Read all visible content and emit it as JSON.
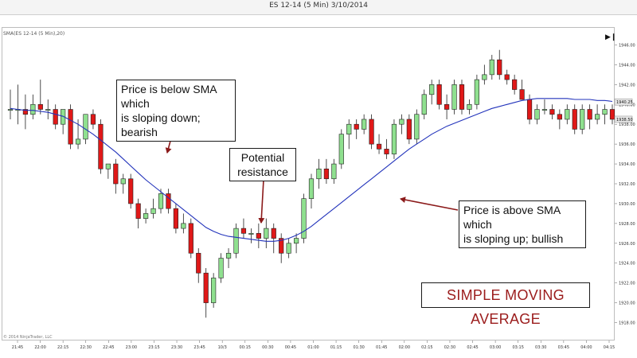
{
  "window_title": "ES 12-14 (5 Min)  3/10/2014",
  "instrument_label": "SMA(ES 12-14 (5 Min),20)",
  "copyright": "© 2014 NinjaTrader, LLC",
  "icons": {
    "play": "play-to-end-icon"
  },
  "colors": {
    "up": "#8fe08f",
    "down": "#e01818",
    "sma": "#2233bb",
    "arrow": "#8b1a1a",
    "title": "#9b1c1c"
  },
  "annotations": {
    "below_sma": "Price is below SMA which\nis sloping down; bearish",
    "resistance": "Potential\nresistance",
    "above_sma": "Price is above SMA which\nis sloping up; bullish",
    "title": "SIMPLE MOVING AVERAGE"
  },
  "chart_data": {
    "type": "candlestick",
    "title": "ES 12-14 (5 Min)  3/10/2014",
    "xlabel": "",
    "ylabel": "",
    "ylim": [
      1917,
      1947
    ],
    "y_ticks": [
      1918,
      1920,
      1922,
      1924,
      1926,
      1928,
      1930,
      1932,
      1934,
      1936,
      1938,
      1940,
      1942,
      1944,
      1946
    ],
    "y_tick_labels": [
      "1918.00",
      "1920.00",
      "1922.00",
      "1924.00",
      "1926.00",
      "1928.00",
      "1930.00",
      "1932.00",
      "1934.00",
      "1936.00",
      "1938.00",
      "1940.00",
      "1942.00",
      "1944.00",
      "1946.00"
    ],
    "x_ticks": [
      "21:45",
      "22:00",
      "22:15",
      "22:30",
      "22:45",
      "23:00",
      "23:15",
      "23:30",
      "23:45",
      "10/3",
      "00:15",
      "00:30",
      "00:45",
      "01:00",
      "01:15",
      "01:30",
      "01:45",
      "02:00",
      "02:15",
      "02:30",
      "02:45",
      "03:00",
      "03:15",
      "03:30",
      "03:45",
      "04:00",
      "04:15"
    ],
    "last_price_labels": [
      {
        "value": 1940.25,
        "label": "1940.25"
      },
      {
        "value": 1938.5,
        "label": "1938.50"
      }
    ],
    "candles": [
      {
        "o": 1939.5,
        "h": 1941.5,
        "l": 1938.5,
        "c": 1939.5
      },
      {
        "o": 1939.5,
        "h": 1942.0,
        "l": 1938.0,
        "c": 1939.5
      },
      {
        "o": 1939.5,
        "h": 1941.0,
        "l": 1937.5,
        "c": 1939.0
      },
      {
        "o": 1939.0,
        "h": 1941.0,
        "l": 1938.5,
        "c": 1940.0
      },
      {
        "o": 1940.0,
        "h": 1942.5,
        "l": 1939.0,
        "c": 1939.5
      },
      {
        "o": 1939.5,
        "h": 1940.5,
        "l": 1938.5,
        "c": 1939.5
      },
      {
        "o": 1939.5,
        "h": 1940.0,
        "l": 1937.5,
        "c": 1938.0
      },
      {
        "o": 1938.0,
        "h": 1939.5,
        "l": 1937.0,
        "c": 1939.5
      },
      {
        "o": 1939.5,
        "h": 1940.0,
        "l": 1935.5,
        "c": 1936.0
      },
      {
        "o": 1936.0,
        "h": 1938.5,
        "l": 1935.5,
        "c": 1936.5
      },
      {
        "o": 1936.5,
        "h": 1939.0,
        "l": 1936.0,
        "c": 1939.0
      },
      {
        "o": 1939.0,
        "h": 1939.5,
        "l": 1937.5,
        "c": 1938.0
      },
      {
        "o": 1938.0,
        "h": 1938.5,
        "l": 1933.0,
        "c": 1933.5
      },
      {
        "o": 1933.5,
        "h": 1934.0,
        "l": 1932.5,
        "c": 1934.0
      },
      {
        "o": 1934.0,
        "h": 1934.5,
        "l": 1931.0,
        "c": 1932.0
      },
      {
        "o": 1932.0,
        "h": 1933.0,
        "l": 1931.0,
        "c": 1932.5
      },
      {
        "o": 1932.5,
        "h": 1933.0,
        "l": 1929.5,
        "c": 1930.0
      },
      {
        "o": 1930.0,
        "h": 1930.5,
        "l": 1927.5,
        "c": 1928.5
      },
      {
        "o": 1928.5,
        "h": 1929.5,
        "l": 1928.0,
        "c": 1929.0
      },
      {
        "o": 1929.0,
        "h": 1930.5,
        "l": 1928.5,
        "c": 1929.5
      },
      {
        "o": 1929.5,
        "h": 1931.5,
        "l": 1929.0,
        "c": 1931.0
      },
      {
        "o": 1931.0,
        "h": 1931.5,
        "l": 1929.0,
        "c": 1929.5
      },
      {
        "o": 1929.5,
        "h": 1930.0,
        "l": 1927.0,
        "c": 1927.5
      },
      {
        "o": 1927.5,
        "h": 1929.0,
        "l": 1927.0,
        "c": 1928.0
      },
      {
        "o": 1928.0,
        "h": 1928.5,
        "l": 1924.5,
        "c": 1925.0
      },
      {
        "o": 1925.0,
        "h": 1925.5,
        "l": 1922.0,
        "c": 1923.0
      },
      {
        "o": 1923.0,
        "h": 1923.5,
        "l": 1918.5,
        "c": 1920.0
      },
      {
        "o": 1920.0,
        "h": 1923.0,
        "l": 1919.5,
        "c": 1922.5
      },
      {
        "o": 1922.5,
        "h": 1925.0,
        "l": 1922.0,
        "c": 1924.5
      },
      {
        "o": 1924.5,
        "h": 1925.5,
        "l": 1923.5,
        "c": 1925.0
      },
      {
        "o": 1925.0,
        "h": 1928.0,
        "l": 1924.5,
        "c": 1927.5
      },
      {
        "o": 1927.5,
        "h": 1928.5,
        "l": 1926.5,
        "c": 1927.0
      },
      {
        "o": 1927.0,
        "h": 1927.5,
        "l": 1926.0,
        "c": 1927.0
      },
      {
        "o": 1927.0,
        "h": 1928.0,
        "l": 1925.5,
        "c": 1926.5
      },
      {
        "o": 1926.5,
        "h": 1928.5,
        "l": 1925.5,
        "c": 1927.5
      },
      {
        "o": 1927.5,
        "h": 1928.0,
        "l": 1925.0,
        "c": 1926.5
      },
      {
        "o": 1926.5,
        "h": 1927.0,
        "l": 1924.0,
        "c": 1925.0
      },
      {
        "o": 1925.0,
        "h": 1926.5,
        "l": 1924.5,
        "c": 1926.0
      },
      {
        "o": 1926.0,
        "h": 1927.0,
        "l": 1925.0,
        "c": 1926.5
      },
      {
        "o": 1926.5,
        "h": 1931.0,
        "l": 1926.0,
        "c": 1930.5
      },
      {
        "o": 1930.5,
        "h": 1933.0,
        "l": 1929.5,
        "c": 1932.5
      },
      {
        "o": 1932.5,
        "h": 1934.5,
        "l": 1931.5,
        "c": 1933.5
      },
      {
        "o": 1933.5,
        "h": 1934.5,
        "l": 1932.0,
        "c": 1932.5
      },
      {
        "o": 1932.5,
        "h": 1934.5,
        "l": 1932.0,
        "c": 1934.0
      },
      {
        "o": 1934.0,
        "h": 1937.5,
        "l": 1933.5,
        "c": 1937.0
      },
      {
        "o": 1937.0,
        "h": 1938.5,
        "l": 1935.5,
        "c": 1938.0
      },
      {
        "o": 1938.0,
        "h": 1938.5,
        "l": 1936.5,
        "c": 1937.5
      },
      {
        "o": 1937.5,
        "h": 1939.0,
        "l": 1937.0,
        "c": 1938.5
      },
      {
        "o": 1938.5,
        "h": 1939.0,
        "l": 1935.5,
        "c": 1936.0
      },
      {
        "o": 1936.0,
        "h": 1937.0,
        "l": 1935.0,
        "c": 1935.5
      },
      {
        "o": 1935.5,
        "h": 1936.5,
        "l": 1934.5,
        "c": 1935.0
      },
      {
        "o": 1935.0,
        "h": 1938.5,
        "l": 1934.5,
        "c": 1938.0
      },
      {
        "o": 1938.0,
        "h": 1939.0,
        "l": 1937.0,
        "c": 1938.5
      },
      {
        "o": 1938.5,
        "h": 1939.0,
        "l": 1936.0,
        "c": 1936.5
      },
      {
        "o": 1936.5,
        "h": 1939.5,
        "l": 1936.0,
        "c": 1939.0
      },
      {
        "o": 1939.0,
        "h": 1941.5,
        "l": 1938.5,
        "c": 1941.0
      },
      {
        "o": 1941.0,
        "h": 1942.5,
        "l": 1940.0,
        "c": 1942.0
      },
      {
        "o": 1942.0,
        "h": 1942.5,
        "l": 1939.5,
        "c": 1940.0
      },
      {
        "o": 1940.0,
        "h": 1941.0,
        "l": 1938.5,
        "c": 1939.5
      },
      {
        "o": 1939.5,
        "h": 1942.5,
        "l": 1939.0,
        "c": 1942.0
      },
      {
        "o": 1942.0,
        "h": 1942.5,
        "l": 1939.0,
        "c": 1939.5
      },
      {
        "o": 1939.5,
        "h": 1940.5,
        "l": 1939.0,
        "c": 1940.0
      },
      {
        "o": 1940.0,
        "h": 1943.0,
        "l": 1939.5,
        "c": 1942.5
      },
      {
        "o": 1942.5,
        "h": 1944.0,
        "l": 1942.0,
        "c": 1943.0
      },
      {
        "o": 1943.0,
        "h": 1945.0,
        "l": 1942.5,
        "c": 1944.5
      },
      {
        "o": 1944.5,
        "h": 1945.5,
        "l": 1942.5,
        "c": 1943.0
      },
      {
        "o": 1943.0,
        "h": 1943.5,
        "l": 1942.0,
        "c": 1942.5
      },
      {
        "o": 1942.5,
        "h": 1943.0,
        "l": 1941.0,
        "c": 1941.5
      },
      {
        "o": 1941.5,
        "h": 1942.5,
        "l": 1940.5,
        "c": 1940.5
      },
      {
        "o": 1940.5,
        "h": 1941.0,
        "l": 1938.0,
        "c": 1938.5
      },
      {
        "o": 1938.5,
        "h": 1940.0,
        "l": 1938.0,
        "c": 1939.5
      },
      {
        "o": 1939.5,
        "h": 1940.5,
        "l": 1939.0,
        "c": 1939.5
      },
      {
        "o": 1939.5,
        "h": 1940.0,
        "l": 1938.5,
        "c": 1939.0
      },
      {
        "o": 1939.0,
        "h": 1939.5,
        "l": 1937.5,
        "c": 1938.5
      },
      {
        "o": 1938.5,
        "h": 1940.0,
        "l": 1938.0,
        "c": 1939.5
      },
      {
        "o": 1939.5,
        "h": 1940.0,
        "l": 1937.0,
        "c": 1937.5
      },
      {
        "o": 1937.5,
        "h": 1940.0,
        "l": 1937.0,
        "c": 1939.5
      },
      {
        "o": 1939.5,
        "h": 1940.0,
        "l": 1937.5,
        "c": 1938.5
      },
      {
        "o": 1938.5,
        "h": 1940.0,
        "l": 1938.0,
        "c": 1939.0
      },
      {
        "o": 1939.0,
        "h": 1940.0,
        "l": 1938.0,
        "c": 1939.5
      },
      {
        "o": 1939.5,
        "h": 1940.0,
        "l": 1938.0,
        "c": 1938.5
      }
    ],
    "sma": [
      1939.6,
      1939.5,
      1939.4,
      1939.4,
      1939.3,
      1939.2,
      1939.0,
      1938.8,
      1938.4,
      1938.0,
      1937.5,
      1937.0,
      1936.4,
      1935.8,
      1935.2,
      1934.5,
      1933.8,
      1933.1,
      1932.4,
      1931.8,
      1931.2,
      1930.6,
      1930.0,
      1929.4,
      1928.8,
      1928.2,
      1927.6,
      1927.2,
      1926.9,
      1926.7,
      1926.6,
      1926.5,
      1926.4,
      1926.3,
      1926.2,
      1926.2,
      1926.3,
      1926.5,
      1926.8,
      1927.2,
      1927.7,
      1928.3,
      1928.9,
      1929.5,
      1930.1,
      1930.7,
      1931.3,
      1931.9,
      1932.5,
      1933.1,
      1933.7,
      1934.3,
      1934.9,
      1935.5,
      1936.0,
      1936.5,
      1937.0,
      1937.4,
      1937.8,
      1938.1,
      1938.4,
      1938.7,
      1939.0,
      1939.3,
      1939.6,
      1939.8,
      1940.0,
      1940.2,
      1940.4,
      1940.5,
      1940.6,
      1940.6,
      1940.6,
      1940.6,
      1940.6,
      1940.5,
      1940.5,
      1940.5,
      1940.4,
      1940.4,
      1940.3
    ]
  }
}
